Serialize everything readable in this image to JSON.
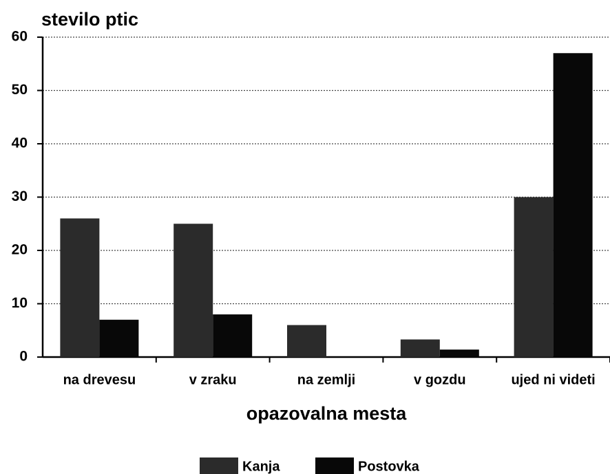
{
  "chart_data": {
    "type": "bar",
    "title": "stevilo ptic",
    "x_label": "opazovalna mesta",
    "categories": [
      "na drevesu",
      "v zraku",
      "na zemlji",
      "v gozdu",
      "ujed ni videti"
    ],
    "series": [
      {
        "name": "Kanja",
        "color": "#2b2b2b",
        "values": [
          26,
          25,
          6,
          3.3,
          30
        ]
      },
      {
        "name": "Postovka",
        "color": "#080808",
        "values": [
          7,
          8,
          0,
          1.4,
          57
        ]
      }
    ],
    "ylim": [
      0,
      60
    ],
    "yticks": [
      0,
      10,
      20,
      30,
      40,
      50,
      60
    ],
    "grid": true,
    "legend": "bottom"
  }
}
